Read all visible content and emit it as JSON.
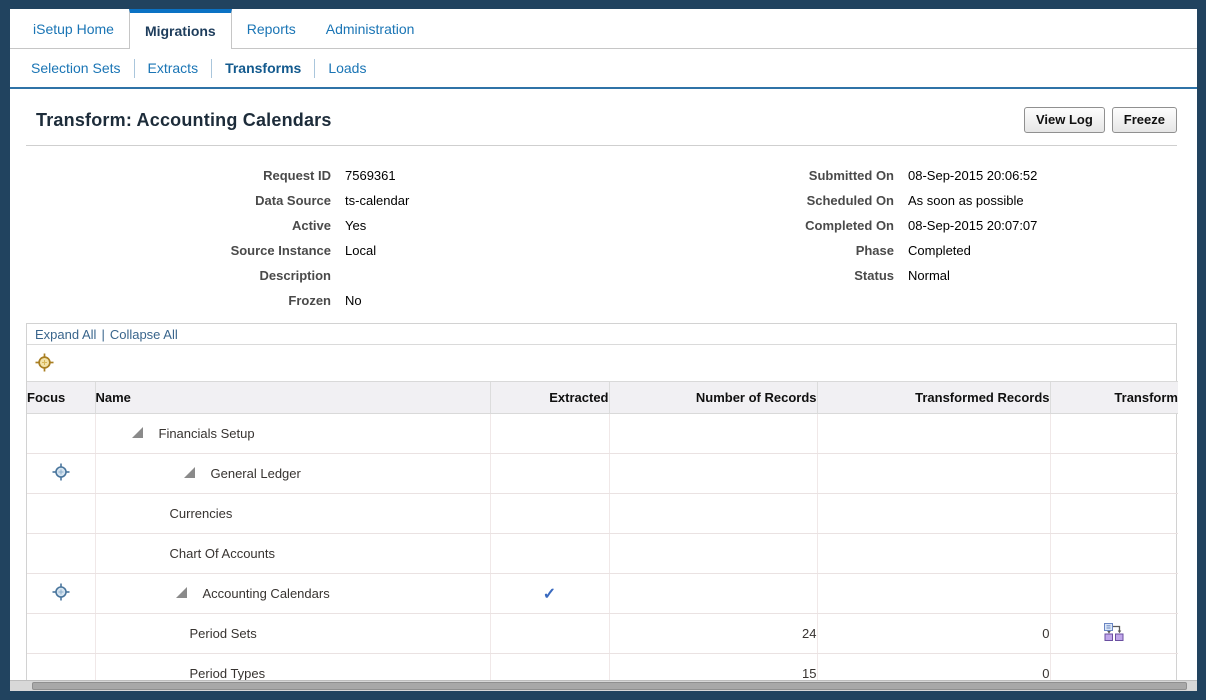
{
  "colors": {
    "frame_navy": "#21435f",
    "tab_accent_blue": "#0b72c4",
    "link_blue": "#1a75b5",
    "check_blue": "#3a6abf",
    "focus_icon_blue": "#49759c",
    "focus_icon_gold": "#a97f22",
    "transform_icon_purple": "#c0a6ea"
  },
  "tabs": [
    {
      "label": "iSetup Home",
      "selected": false
    },
    {
      "label": "Migrations",
      "selected": true
    },
    {
      "label": "Reports",
      "selected": false
    },
    {
      "label": "Administration",
      "selected": false
    }
  ],
  "subtabs": [
    {
      "label": "Selection Sets",
      "selected": false
    },
    {
      "label": "Extracts",
      "selected": false
    },
    {
      "label": "Transforms",
      "selected": true
    },
    {
      "label": "Loads",
      "selected": false
    }
  ],
  "header": {
    "title": "Transform: Accounting Calendars",
    "buttons": [
      {
        "label": "View Log"
      },
      {
        "label": "Freeze"
      }
    ]
  },
  "details": {
    "left": [
      {
        "label": "Request ID",
        "value": "7569361"
      },
      {
        "label": "Data Source",
        "value": "ts-calendar"
      },
      {
        "label": "Active",
        "value": "Yes"
      },
      {
        "label": "Source Instance",
        "value": "Local"
      },
      {
        "label": "Description",
        "value": ""
      },
      {
        "label": "Frozen",
        "value": "No"
      }
    ],
    "right": [
      {
        "label": "Submitted On",
        "value": "08-Sep-2015 20:06:52"
      },
      {
        "label": "Scheduled On",
        "value": "As soon as possible"
      },
      {
        "label": "Completed On",
        "value": "08-Sep-2015 20:07:07"
      },
      {
        "label": "Phase",
        "value": "Completed"
      },
      {
        "label": "Status",
        "value": "Normal"
      }
    ]
  },
  "tree_controls": {
    "expand_all": "Expand All",
    "divider": "|",
    "collapse_all": "Collapse All",
    "focus_icon": "focus-crosshair-gold-icon"
  },
  "table": {
    "columns": [
      {
        "label": "Focus"
      },
      {
        "label": "Name"
      },
      {
        "label": "Extracted"
      },
      {
        "label": "Number of Records"
      },
      {
        "label": "Transformed Records"
      },
      {
        "label": "Transform"
      }
    ],
    "rows": [
      {
        "name": "Financials Setup",
        "indent": 35,
        "has_children": true,
        "focusable": false,
        "extracted": false,
        "records": "",
        "transformed": "",
        "has_transform_icon": false
      },
      {
        "name": "General Ledger",
        "indent": 87,
        "has_children": true,
        "focusable": true,
        "extracted": false,
        "records": "",
        "transformed": "",
        "has_transform_icon": false
      },
      {
        "name": "Currencies",
        "indent": 74,
        "has_children": false,
        "focusable": false,
        "extracted": false,
        "records": "",
        "transformed": "",
        "has_transform_icon": false
      },
      {
        "name": "Chart Of Accounts",
        "indent": 74,
        "has_children": false,
        "focusable": false,
        "extracted": false,
        "records": "",
        "transformed": "",
        "has_transform_icon": false
      },
      {
        "name": "Accounting Calendars",
        "indent": 79,
        "has_children": true,
        "focusable": true,
        "extracted": true,
        "records": "",
        "transformed": "",
        "has_transform_icon": false
      },
      {
        "name": "Period Sets",
        "indent": 94,
        "has_children": false,
        "focusable": false,
        "extracted": false,
        "records": "24",
        "transformed": "0",
        "has_transform_icon": true
      },
      {
        "name": "Period Types",
        "indent": 94,
        "has_children": false,
        "focusable": false,
        "extracted": false,
        "records": "15",
        "transformed": "0",
        "has_transform_icon": false
      }
    ]
  }
}
